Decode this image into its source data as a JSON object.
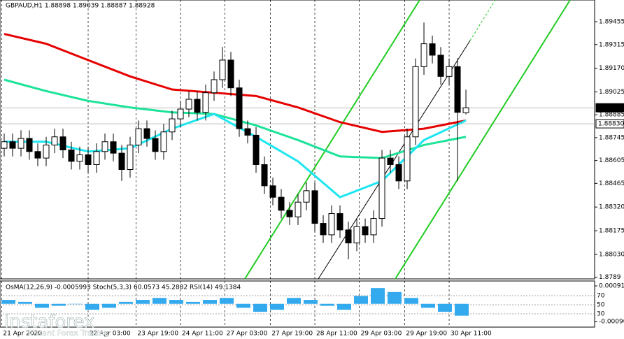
{
  "chart_data": {
    "type": "candlestick",
    "title": "GBPAUD,H1 1.88898 1.89039 1.88887 1.88928",
    "ylim": [
      1.8788,
      1.89588
    ],
    "yticks": [
      1.89455,
      1.89315,
      {
        "value": 1.8917,
        "label": "1.89170"
      },
      1.89025,
      1.88885,
      1.88745,
      1.88605,
      1.88465,
      {
        "value": 1.8832,
        "label": "1.88320"
      },
      1.88175,
      {
        "value": 1.8803,
        "label": "1.88030"
      },
      1.8789
    ],
    "price_markers": [
      {
        "value": 1.88928,
        "label": "1.88928"
      },
      {
        "value": 1.8883,
        "label": "1.88830"
      }
    ],
    "xlim": [
      -0.5,
      70.33
    ],
    "xticks": [
      {
        "value": -0.3,
        "label": "21 Apr 2020"
      },
      {
        "value": 10,
        "label": "22 Apr 03:00"
      },
      {
        "value": 15.7,
        "label": "23 Apr 19:00"
      },
      {
        "value": 21,
        "label": "24 Apr 11:00"
      },
      {
        "value": 26.3,
        "label": "27 Apr 03:00"
      },
      {
        "value": 31.7,
        "label": "27 Apr 19:00"
      },
      {
        "value": 37,
        "label": "28 Apr 11:00"
      },
      {
        "value": 42.3,
        "label": "29 Apr 03:00"
      },
      {
        "value": 47.7,
        "label": "29 Apr 19:00"
      },
      {
        "value": 53,
        "label": "30 Apr 11:00"
      }
    ],
    "open": [
      1.8868,
      1.8872,
      1.8868,
      1.8874,
      1.8866,
      1.8862,
      1.887,
      1.8875,
      1.8867,
      1.886,
      1.8864,
      1.8858,
      1.8866,
      1.8872,
      1.8865,
      1.8855,
      1.887,
      1.888,
      1.8874,
      1.8866,
      1.8878,
      1.8886,
      1.8892,
      1.8898,
      1.889,
      1.8902,
      1.891,
      1.8922,
      1.8905,
      1.888,
      1.8876,
      1.8858,
      1.8845,
      1.8838,
      1.883,
      1.8826,
      1.8835,
      1.8842,
      1.8822,
      1.8815,
      1.8828,
      1.8818,
      1.881,
      1.882,
      1.8815,
      1.8825,
      1.8862,
      1.8858,
      1.8848,
      1.8875,
      1.8918,
      1.8932,
      1.8925,
      1.8912,
      1.8918,
      1.88898
    ],
    "high": [
      1.8877,
      1.8877,
      1.8879,
      1.8879,
      1.8871,
      1.8875,
      1.888,
      1.888,
      1.8872,
      1.8869,
      1.8869,
      1.8871,
      1.8877,
      1.8877,
      1.887,
      1.8875,
      1.8885,
      1.8885,
      1.8879,
      1.8883,
      1.8891,
      1.8897,
      1.8903,
      1.8903,
      1.8907,
      1.8915,
      1.893,
      1.8927,
      1.891,
      1.8885,
      1.8881,
      1.8863,
      1.885,
      1.8843,
      1.8835,
      1.884,
      1.8847,
      1.8847,
      1.8827,
      1.8833,
      1.8833,
      1.8823,
      1.8825,
      1.8825,
      1.883,
      1.8867,
      1.8867,
      1.8863,
      1.888,
      1.8923,
      1.8945,
      1.8937,
      1.893,
      1.8923,
      1.8923,
      1.89039
    ],
    "low": [
      1.8863,
      1.8863,
      1.8863,
      1.8861,
      1.8857,
      1.8857,
      1.8865,
      1.8862,
      1.8855,
      1.8855,
      1.8853,
      1.8853,
      1.8861,
      1.886,
      1.8848,
      1.885,
      1.8865,
      1.8869,
      1.8861,
      1.8861,
      1.8873,
      1.8881,
      1.8887,
      1.8885,
      1.8885,
      1.8897,
      1.8905,
      1.89,
      1.8875,
      1.8871,
      1.8853,
      1.884,
      1.8833,
      1.8825,
      1.8821,
      1.8821,
      1.883,
      1.8817,
      1.881,
      1.881,
      1.8813,
      1.88,
      1.8805,
      1.881,
      1.881,
      1.882,
      1.8853,
      1.8843,
      1.8843,
      1.887,
      1.8913,
      1.892,
      1.8907,
      1.8907,
      1.8848,
      1.88887
    ],
    "close": [
      1.8872,
      1.8868,
      1.8874,
      1.8866,
      1.8862,
      1.887,
      1.8875,
      1.8867,
      1.886,
      1.8864,
      1.8858,
      1.8866,
      1.8872,
      1.8865,
      1.8855,
      1.887,
      1.888,
      1.8874,
      1.8866,
      1.8878,
      1.8886,
      1.8892,
      1.8898,
      1.889,
      1.8902,
      1.891,
      1.8922,
      1.8905,
      1.888,
      1.8876,
      1.8858,
      1.8845,
      1.8838,
      1.883,
      1.8826,
      1.8835,
      1.8842,
      1.8822,
      1.8815,
      1.8828,
      1.8818,
      1.881,
      1.882,
      1.8815,
      1.8825,
      1.8862,
      1.8858,
      1.8848,
      1.8875,
      1.8918,
      1.8932,
      1.8925,
      1.8912,
      1.8918,
      1.889,
      1.88928
    ],
    "lines": [
      {
        "color": "#e60000",
        "x": [
          0,
          5,
          10,
          15,
          20,
          25,
          30,
          35,
          40,
          45,
          50,
          55
        ],
        "values": [
          1.8938,
          1.8932,
          1.8922,
          1.8912,
          1.8904,
          1.8902,
          1.89,
          1.8893,
          1.8884,
          1.8878,
          1.888,
          1.8885
        ]
      },
      {
        "color": "#1de39a",
        "x": [
          0,
          5,
          10,
          15,
          20,
          25,
          30,
          35,
          40,
          45,
          50,
          55
        ],
        "values": [
          1.891,
          1.8903,
          1.8897,
          1.8893,
          1.889,
          1.8889,
          1.8882,
          1.8873,
          1.8863,
          1.8862,
          1.887,
          1.8875
        ]
      },
      {
        "color": "#1ee6f0",
        "x": [
          0,
          5,
          10,
          15,
          20,
          25,
          30,
          35,
          40,
          45,
          50,
          55
        ],
        "values": [
          1.8872,
          1.8872,
          1.8866,
          1.8868,
          1.888,
          1.8889,
          1.8875,
          1.886,
          1.8838,
          1.8848,
          1.8873,
          1.8885
        ]
      }
    ],
    "indicator": {
      "title": "OsMA(12,26,9) -0.0005993  Stoch(5,3,3) 60.0573 45.2882  RSI(14) 49.1384",
      "ylim": [
        -0.00118,
        0.00116
      ],
      "yticks": [
        {
          "value": 0.00091,
          "label": "0.000910"
        },
        {
          "value": -0.0009,
          "label": "-0.00090"
        }
      ],
      "y2lim": [
        0.8,
        102.3
      ],
      "y2ticks": [
        70,
        50,
        30
      ],
      "color": "#33aaee",
      "values": [
        0.0002,
        0.0001,
        -0.0002,
        -0.0001,
        0.0,
        -0.0003,
        -0.0002,
        0.0001,
        0.0002,
        0.0003,
        0.0002,
        0.0001,
        0.0002,
        0.0003,
        -0.0002,
        -0.0004,
        -0.0003,
        0.0003,
        0.0002,
        -0.0001,
        -0.0003,
        0.0004,
        0.0008,
        0.0006,
        0.0003,
        -0.0002,
        -0.0004,
        -0.0006
      ]
    },
    "watermark": "instaforex",
    "watermark_subtitle": "Instant Forex Trading"
  }
}
